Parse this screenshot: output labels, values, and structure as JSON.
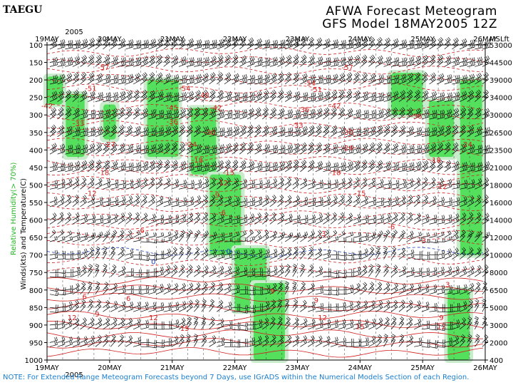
{
  "header": {
    "station": "TAEGU",
    "title_line1": "AFWA Forecast Meteogram",
    "title_line2": "GFS Model 18MAY2005 12Z"
  },
  "footer": {
    "note": "NOTE: For Extended Range Meteogram Forecasts beyond 7 Days, use IGrADS within the Numerical Models Section of each Region."
  },
  "chart_data": {
    "type": "heatmap",
    "ylabel_left": "Winds(kts) and Temperature(C)",
    "ylabel_left_alt": "Relative Humidity(> 70%)",
    "ylabel_right_unit": "MSLft",
    "year_label": "2005",
    "x_dates": [
      "19MAY",
      "20MAY",
      "21MAY",
      "22MAY",
      "23MAY",
      "24MAY",
      "25MAY",
      "26MAY"
    ],
    "pressure_levels": [
      100,
      150,
      200,
      250,
      300,
      350,
      400,
      450,
      500,
      550,
      600,
      650,
      700,
      750,
      800,
      850,
      900,
      950,
      1000
    ],
    "height_labels": [
      "53000",
      "44500",
      "39000",
      "34000",
      "30000",
      "26500",
      "23500",
      "21000",
      "18000",
      "16000",
      "14000",
      "12000",
      "10000",
      "8000",
      "6500",
      "5000",
      "3000",
      "2000",
      "400"
    ],
    "ylim": [
      100,
      1000
    ],
    "temperature_contours": [
      {
        "value": "-57",
        "x": 19.9,
        "p": 165,
        "color": "#d02020"
      },
      {
        "value": "-57",
        "x": 23.8,
        "p": 165,
        "color": "#d02020"
      },
      {
        "value": "-51",
        "x": 19.7,
        "p": 225,
        "color": "#d02020"
      },
      {
        "value": "-54",
        "x": 21.2,
        "p": 225,
        "color": "#d02020"
      },
      {
        "value": "-48",
        "x": 21.5,
        "p": 245,
        "color": "#d02020"
      },
      {
        "value": "-54",
        "x": 23.2,
        "p": 210,
        "color": "#d02020"
      },
      {
        "value": "-51",
        "x": 23.3,
        "p": 228,
        "color": "#d02020"
      },
      {
        "value": "-42",
        "x": 19.0,
        "p": 275,
        "color": "#d02020"
      },
      {
        "value": "-45",
        "x": 21.0,
        "p": 280,
        "color": "#d02020"
      },
      {
        "value": "-42",
        "x": 21.7,
        "p": 280,
        "color": "#d02020"
      },
      {
        "value": "-36",
        "x": 23.1,
        "p": 285,
        "color": "#d02020"
      },
      {
        "value": "-42",
        "x": 23.6,
        "p": 275,
        "color": "#d02020"
      },
      {
        "value": "-36",
        "x": 24.9,
        "p": 305,
        "color": "#d02020"
      },
      {
        "value": "-33",
        "x": 19.5,
        "p": 325,
        "color": "#d02020"
      },
      {
        "value": "-36",
        "x": 21.0,
        "p": 320,
        "color": "#d02020"
      },
      {
        "value": "-33",
        "x": 23.0,
        "p": 330,
        "color": "#d02020"
      },
      {
        "value": "-30",
        "x": 21.6,
        "p": 350,
        "color": "#d02020"
      },
      {
        "value": "-30",
        "x": 23.8,
        "p": 350,
        "color": "#d02020"
      },
      {
        "value": "-27",
        "x": 20.0,
        "p": 385,
        "color": "#d02020"
      },
      {
        "value": "-24",
        "x": 21.3,
        "p": 385,
        "color": "#d02020"
      },
      {
        "value": "-24",
        "x": 23.8,
        "p": 395,
        "color": "#d02020"
      },
      {
        "value": "-24",
        "x": 25.7,
        "p": 385,
        "color": "#d02020"
      },
      {
        "value": "-18",
        "x": 19.9,
        "p": 465,
        "color": "#d02020"
      },
      {
        "value": "-18",
        "x": 21.4,
        "p": 430,
        "color": "#d02020"
      },
      {
        "value": "-15",
        "x": 21.9,
        "p": 465,
        "color": "#d02020"
      },
      {
        "value": "-18",
        "x": 23.6,
        "p": 465,
        "color": "#d02020"
      },
      {
        "value": "-18",
        "x": 25.2,
        "p": 430,
        "color": "#d02020"
      },
      {
        "value": "-12",
        "x": 21.8,
        "p": 495,
        "color": "#d02020"
      },
      {
        "value": "-15",
        "x": 24.0,
        "p": 525,
        "color": "#d02020"
      },
      {
        "value": "-12",
        "x": 25.3,
        "p": 505,
        "color": "#d02020"
      },
      {
        "value": "-12",
        "x": 19.7,
        "p": 525,
        "color": "#d02020"
      },
      {
        "value": "-9",
        "x": 21.7,
        "p": 530,
        "color": "#d02020"
      },
      {
        "value": "-6",
        "x": 21.8,
        "p": 580,
        "color": "#d02020"
      },
      {
        "value": "-6",
        "x": 20.5,
        "p": 630,
        "color": "#d02020"
      },
      {
        "value": "-6",
        "x": 24.5,
        "p": 620,
        "color": "#d02020"
      },
      {
        "value": "-3",
        "x": 23.4,
        "p": 640,
        "color": "#d02020"
      },
      {
        "value": "-3",
        "x": 25.0,
        "p": 660,
        "color": "#d02020"
      },
      {
        "value": "0",
        "x": 20.7,
        "p": 720,
        "color": "#2040c0"
      },
      {
        "value": "0",
        "x": 21.9,
        "p": 690,
        "color": "#2040c0"
      },
      {
        "value": "6",
        "x": 19.6,
        "p": 820,
        "color": "#d02020"
      },
      {
        "value": "9",
        "x": 19.8,
        "p": 870,
        "color": "#d02020"
      },
      {
        "value": "6",
        "x": 20.3,
        "p": 825,
        "color": "#d02020"
      },
      {
        "value": "12",
        "x": 19.4,
        "p": 880,
        "color": "#d02020"
      },
      {
        "value": "12",
        "x": 20.7,
        "p": 880,
        "color": "#d02020"
      },
      {
        "value": "15",
        "x": 21.2,
        "p": 910,
        "color": "#d02020"
      },
      {
        "value": "9",
        "x": 22.6,
        "p": 805,
        "color": "#d02020"
      },
      {
        "value": "9",
        "x": 23.3,
        "p": 830,
        "color": "#d02020"
      },
      {
        "value": "12",
        "x": 23.4,
        "p": 880,
        "color": "#d02020"
      },
      {
        "value": "15",
        "x": 24.0,
        "p": 905,
        "color": "#d02020"
      },
      {
        "value": "3",
        "x": 25.4,
        "p": 785,
        "color": "#d02020"
      },
      {
        "value": "9",
        "x": 25.3,
        "p": 880,
        "color": "#d02020"
      },
      {
        "value": "12",
        "x": 25.3,
        "p": 905,
        "color": "#d02020"
      }
    ],
    "humidity_regions": [
      {
        "x0": 19.0,
        "x1": 19.25,
        "p0": 190,
        "p1": 270
      },
      {
        "x0": 19.3,
        "x1": 19.6,
        "p0": 240,
        "p1": 420
      },
      {
        "x0": 19.9,
        "x1": 20.1,
        "p0": 270,
        "p1": 370
      },
      {
        "x0": 20.6,
        "x1": 21.1,
        "p0": 200,
        "p1": 420
      },
      {
        "x0": 21.3,
        "x1": 21.7,
        "p0": 280,
        "p1": 470
      },
      {
        "x0": 21.6,
        "x1": 22.1,
        "p0": 470,
        "p1": 700
      },
      {
        "x0": 22.0,
        "x1": 22.5,
        "p0": 680,
        "p1": 860
      },
      {
        "x0": 22.3,
        "x1": 22.8,
        "p0": 780,
        "p1": 1000
      },
      {
        "x0": 24.5,
        "x1": 25.0,
        "p0": 180,
        "p1": 300
      },
      {
        "x0": 25.1,
        "x1": 25.5,
        "p0": 260,
        "p1": 420
      },
      {
        "x0": 25.6,
        "x1": 25.95,
        "p0": 200,
        "p1": 700
      },
      {
        "x0": 25.4,
        "x1": 25.75,
        "p0": 800,
        "p1": 1000
      }
    ]
  }
}
